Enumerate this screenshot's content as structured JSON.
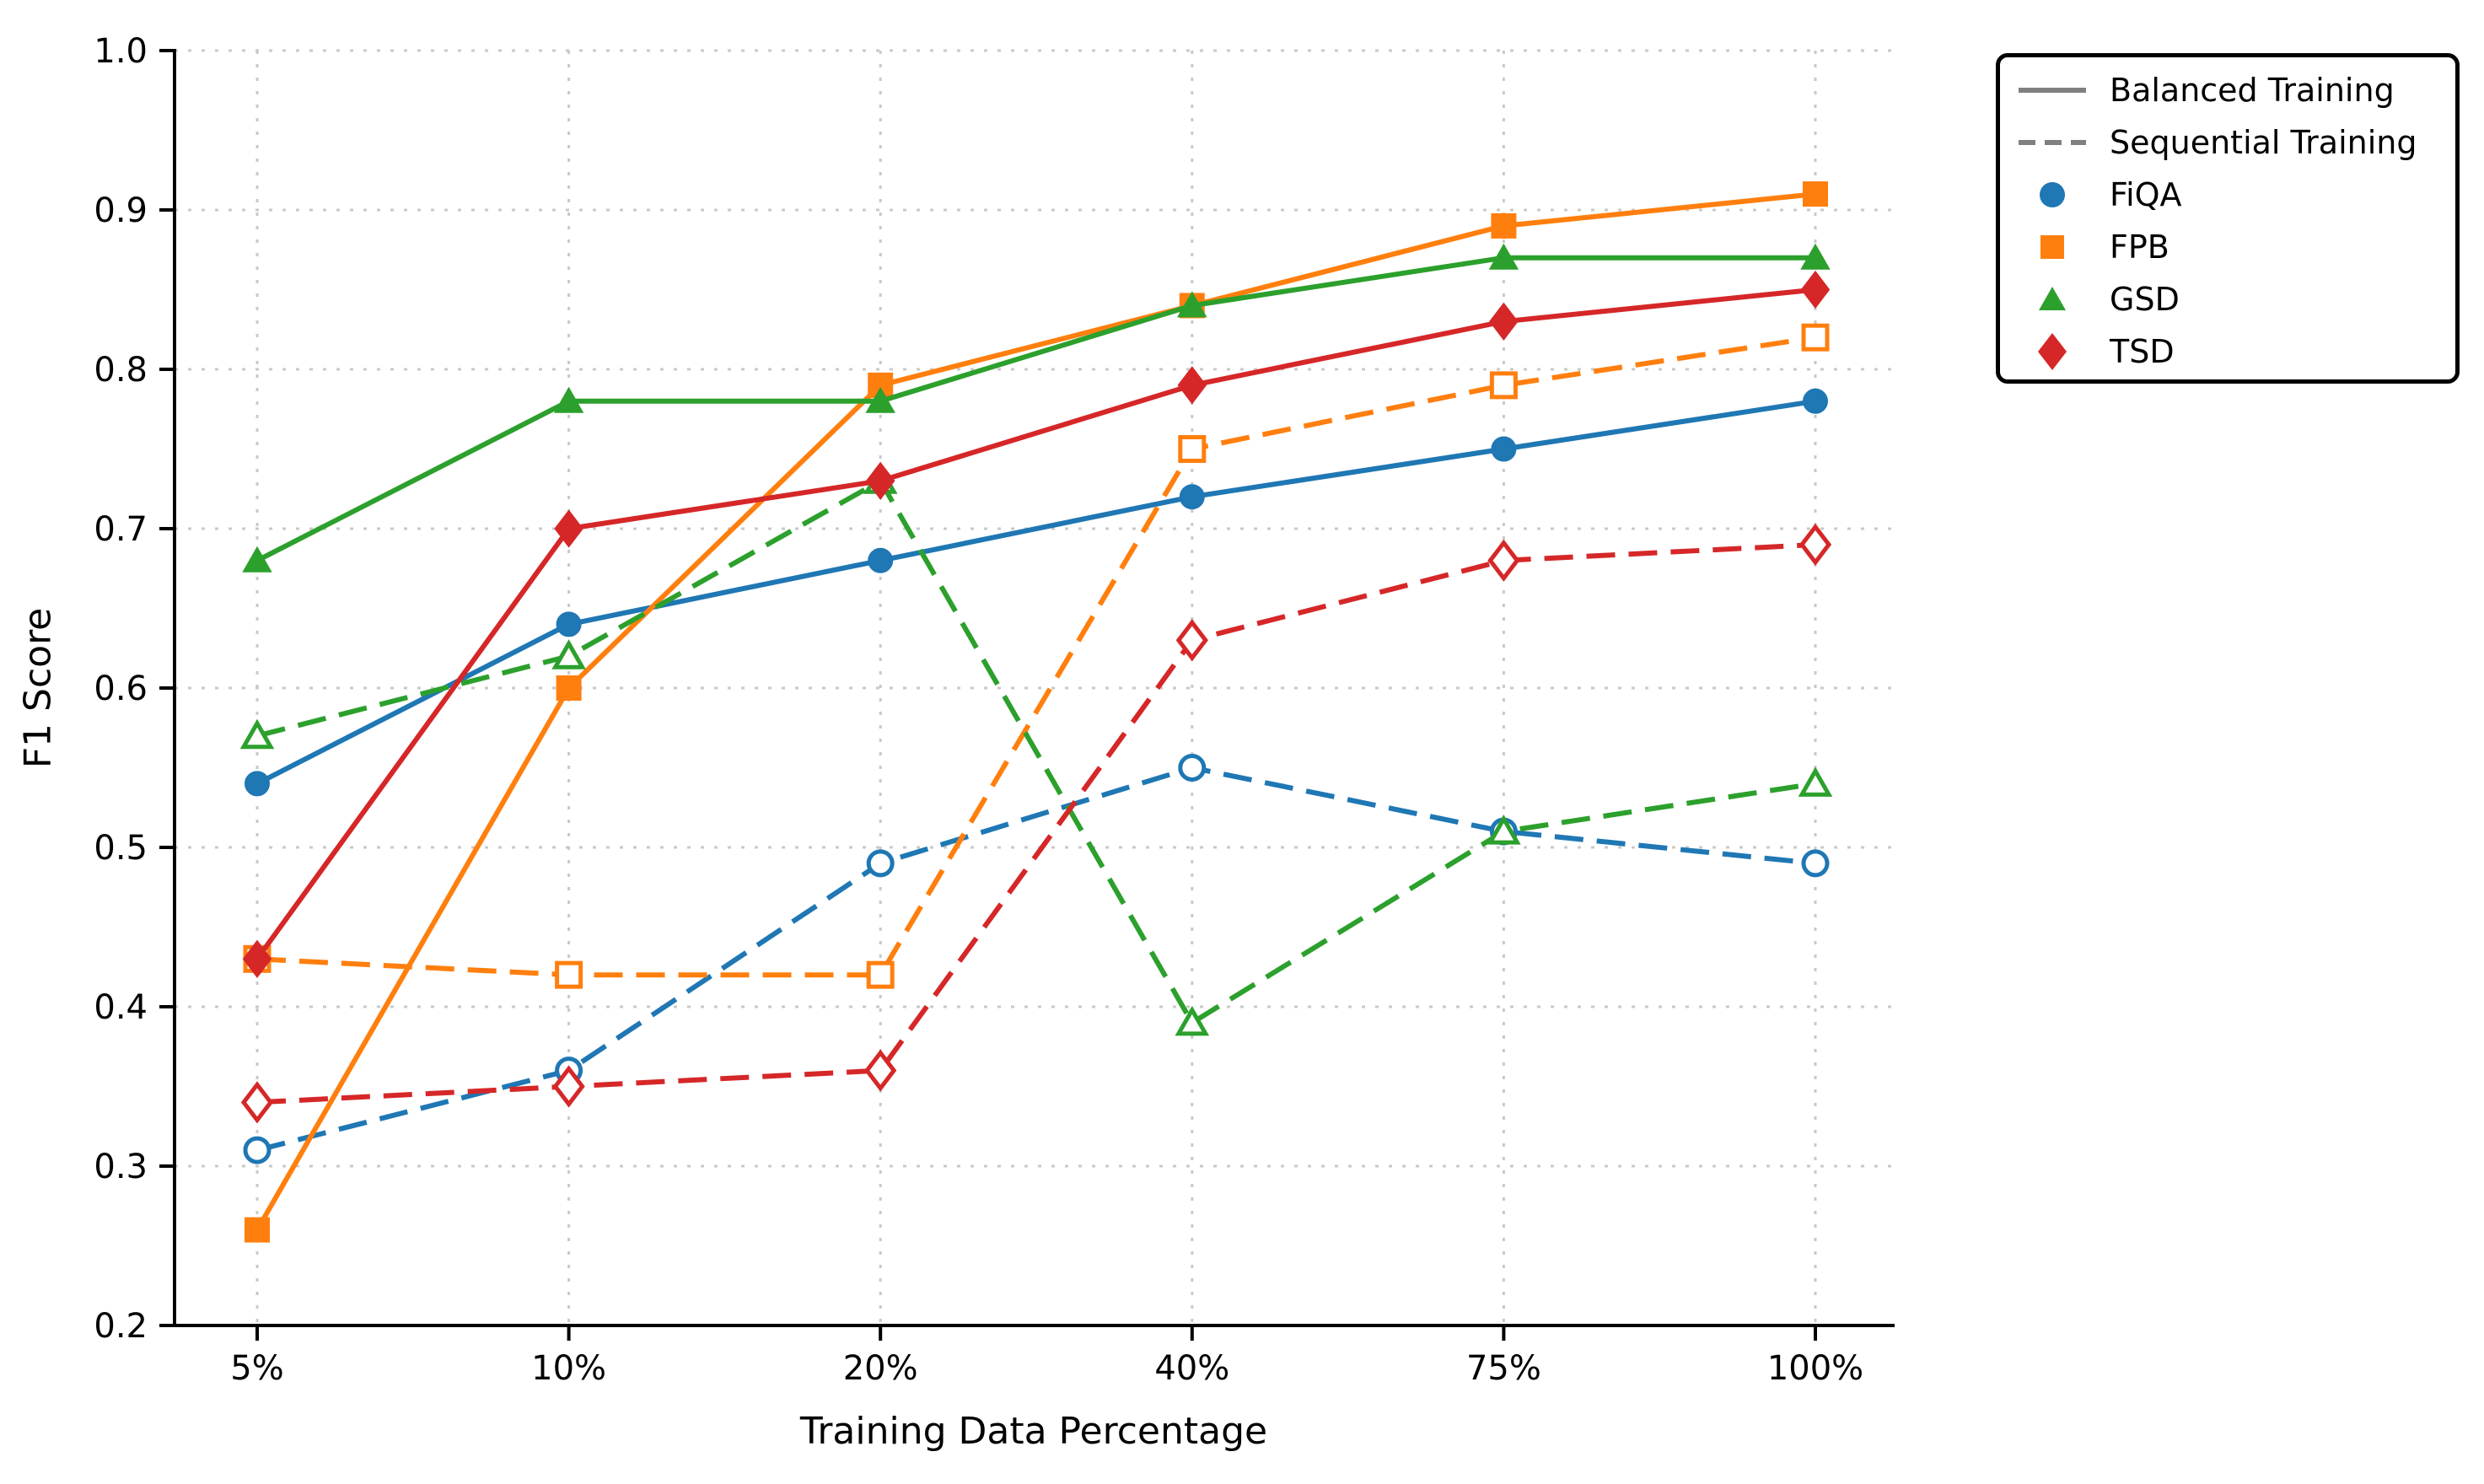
{
  "chart_data": {
    "type": "line",
    "title": "",
    "xlabel": "Training Data Percentage",
    "ylabel": "F1 Score",
    "categories": [
      "5%",
      "10%",
      "20%",
      "40%",
      "75%",
      "100%"
    ],
    "ylim": [
      0.2,
      1.0
    ],
    "yticks": [
      0.2,
      0.3,
      0.4,
      0.5,
      0.6,
      0.7,
      0.8,
      0.9,
      1.0
    ],
    "grid": true,
    "grid_style": "dotted",
    "legend": {
      "position": "outside-top-right",
      "line_styles": [
        {
          "label": "Balanced Training",
          "style": "solid",
          "color": "#808080"
        },
        {
          "label": "Sequential Training",
          "style": "dashed",
          "color": "#808080"
        }
      ],
      "datasets": [
        {
          "label": "FiQA",
          "marker": "circle",
          "color": "#1f77b4"
        },
        {
          "label": "FPB",
          "marker": "square",
          "color": "#ff7f0e"
        },
        {
          "label": "GSD",
          "marker": "triangle",
          "color": "#2ca02c"
        },
        {
          "label": "TSD",
          "marker": "diamond",
          "color": "#d62728"
        }
      ]
    },
    "series": [
      {
        "dataset": "FiQA",
        "training": "Balanced",
        "color": "#1f77b4",
        "marker": "circle",
        "line_style": "solid",
        "values": [
          0.54,
          0.64,
          0.68,
          0.72,
          0.75,
          0.78
        ]
      },
      {
        "dataset": "FiQA",
        "training": "Sequential",
        "color": "#1f77b4",
        "marker": "circle",
        "line_style": "dashed",
        "values": [
          0.31,
          0.36,
          0.49,
          0.55,
          0.51,
          0.49
        ]
      },
      {
        "dataset": "FPB",
        "training": "Balanced",
        "color": "#ff7f0e",
        "marker": "square",
        "line_style": "solid",
        "values": [
          0.26,
          0.6,
          0.79,
          0.84,
          0.89,
          0.91
        ]
      },
      {
        "dataset": "FPB",
        "training": "Sequential",
        "color": "#ff7f0e",
        "marker": "square",
        "line_style": "dashed",
        "values": [
          0.43,
          0.42,
          0.42,
          0.75,
          0.79,
          0.82
        ]
      },
      {
        "dataset": "GSD",
        "training": "Balanced",
        "color": "#2ca02c",
        "marker": "triangle",
        "line_style": "solid",
        "values": [
          0.68,
          0.78,
          0.78,
          0.84,
          0.87,
          0.87
        ]
      },
      {
        "dataset": "GSD",
        "training": "Sequential",
        "color": "#2ca02c",
        "marker": "triangle",
        "line_style": "dashed",
        "values": [
          0.57,
          0.62,
          0.73,
          0.39,
          0.51,
          0.54
        ]
      },
      {
        "dataset": "TSD",
        "training": "Balanced",
        "color": "#d62728",
        "marker": "diamond",
        "line_style": "solid",
        "values": [
          0.43,
          0.7,
          0.73,
          0.79,
          0.83,
          0.85
        ]
      },
      {
        "dataset": "TSD",
        "training": "Sequential",
        "color": "#d62728",
        "marker": "diamond",
        "line_style": "dashed",
        "values": [
          0.34,
          0.35,
          0.36,
          0.63,
          0.68,
          0.69
        ]
      }
    ]
  }
}
